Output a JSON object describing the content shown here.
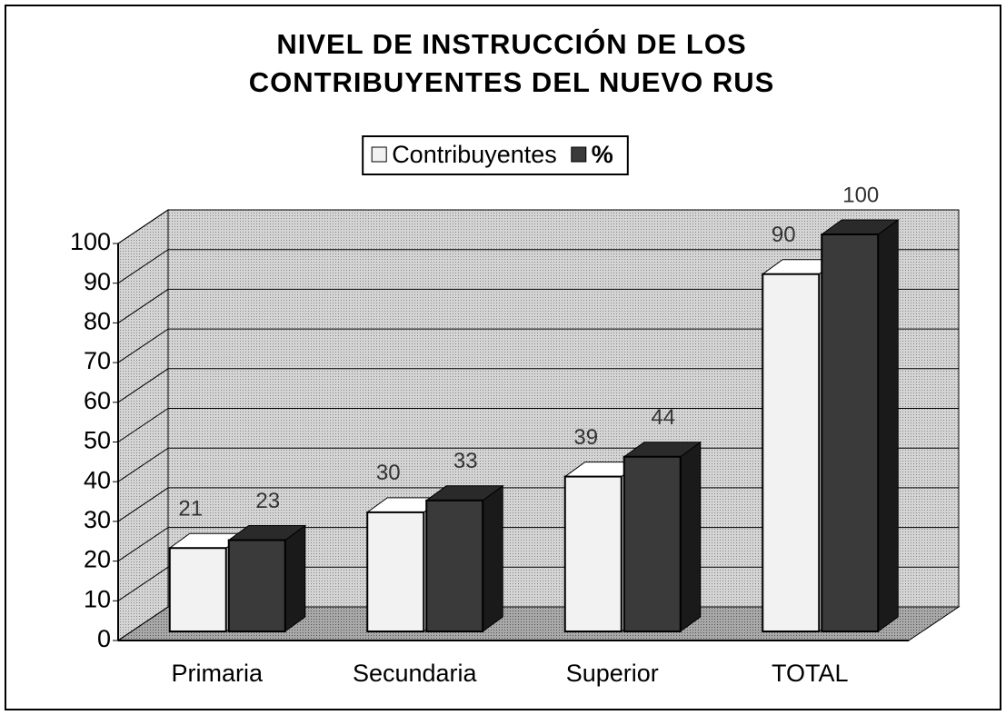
{
  "chart_data": {
    "type": "bar3d",
    "title": "NIVEL DE INSTRUCCIÓN DE LOS CONTRIBUYENTES DEL NUEVO RUS",
    "categories": [
      "Primaria",
      "Secundaria",
      "Superior",
      "TOTAL"
    ],
    "series": [
      {
        "name": "Contribuyentes",
        "color": "#f2f2f2",
        "values": [
          21,
          30,
          39,
          90
        ]
      },
      {
        "name": "%",
        "color": "#3a3a3a",
        "values": [
          23,
          33,
          44,
          100
        ]
      }
    ],
    "ylim": [
      0,
      100
    ],
    "yticks": [
      0,
      10,
      20,
      30,
      40,
      50,
      60,
      70,
      80,
      90,
      100
    ],
    "grid": true,
    "legend": "top"
  }
}
